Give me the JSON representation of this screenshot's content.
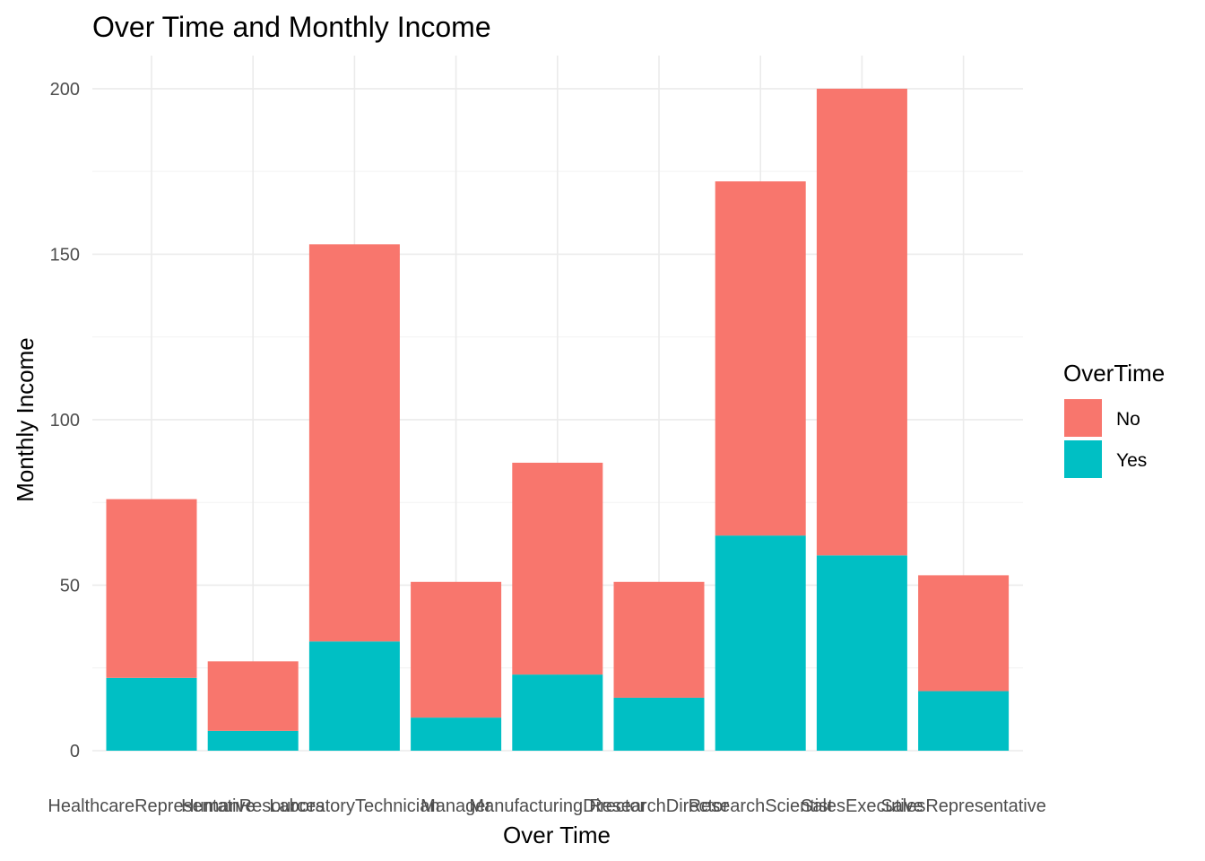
{
  "chart_data": {
    "type": "bar",
    "stacked": true,
    "title": "Over Time and Monthly Income",
    "xlabel": "Over Time",
    "ylabel": "Monthly Income",
    "ylim": [
      0,
      210
    ],
    "yticks": [
      0,
      50,
      100,
      150,
      200
    ],
    "grid": true,
    "legend": {
      "title": "OverTime",
      "position": "right"
    },
    "categories": [
      "HealthcareRepresentative",
      "HumanResources",
      "LaboratoryTechnician",
      "Manager",
      "ManufacturingDirector",
      "ResearchDirector",
      "ResearchScientist",
      "SalesExecutive",
      "SalesRepresentative"
    ],
    "series": [
      {
        "name": "No",
        "color": "#F8766D",
        "values": [
          54,
          21,
          120,
          41,
          64,
          35,
          107,
          141,
          35
        ]
      },
      {
        "name": "Yes",
        "color": "#00BFC4",
        "values": [
          22,
          6,
          33,
          10,
          23,
          16,
          65,
          59,
          18
        ]
      }
    ]
  }
}
